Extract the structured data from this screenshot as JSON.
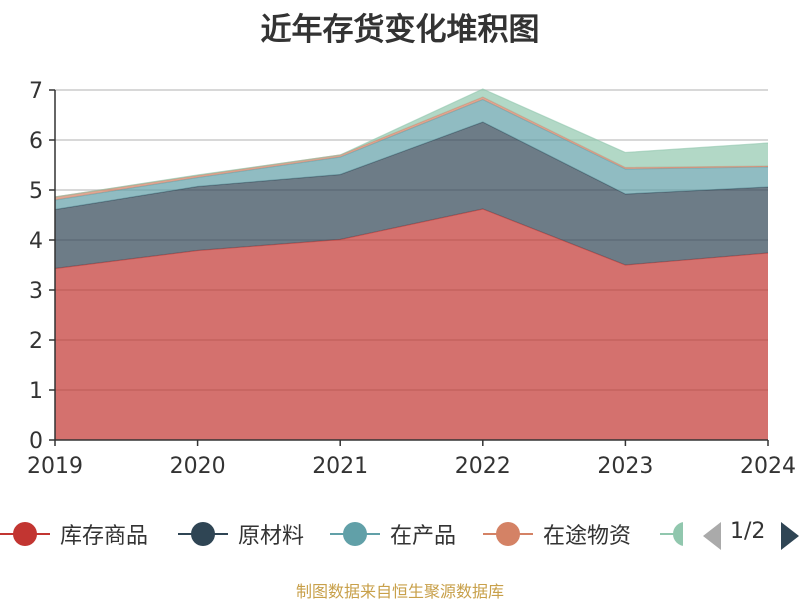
{
  "chart_data": {
    "type": "area",
    "stacked": true,
    "title": "近年存货变化堆积图",
    "categories": [
      "2019",
      "2020",
      "2021",
      "2022",
      "2023",
      "2024"
    ],
    "ylim": [
      0,
      7
    ],
    "yticks": [
      0,
      1,
      2,
      3,
      4,
      5,
      6,
      7
    ],
    "grid": true,
    "legend_position": "bottom",
    "series": [
      {
        "name": "库存商品",
        "color": "#c23531",
        "values": [
          3.43,
          3.79,
          4.01,
          4.62,
          3.5,
          3.74
        ]
      },
      {
        "name": "原材料",
        "color": "#2f4554",
        "values": [
          1.18,
          1.28,
          1.3,
          1.74,
          1.42,
          1.32
        ]
      },
      {
        "name": "在产品",
        "color": "#61a0a8",
        "values": [
          0.19,
          0.18,
          0.35,
          0.45,
          0.5,
          0.4
        ]
      },
      {
        "name": "在途物资",
        "color": "#d48265",
        "values": [
          0.06,
          0.04,
          0.04,
          0.05,
          0.03,
          0.02
        ]
      },
      {
        "name": "",
        "color": "#91c7ae",
        "values": [
          0.0,
          0.01,
          0.0,
          0.16,
          0.3,
          0.46
        ]
      }
    ]
  },
  "legend": {
    "page_label": "1/2"
  },
  "source_text": "制图数据来自恒生聚源数据库"
}
